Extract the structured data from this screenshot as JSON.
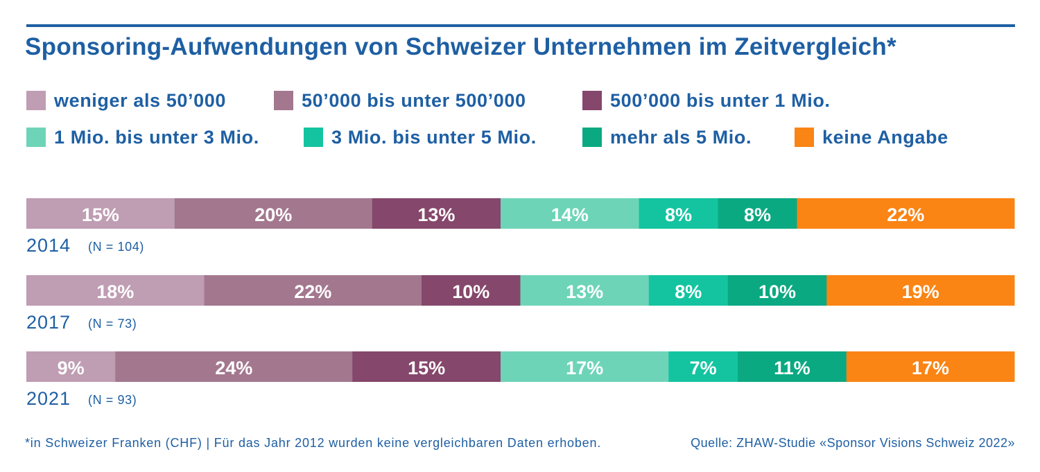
{
  "title": "Sponsoring-Aufwendungen von Schweizer Unternehmen im Zeitvergleich*",
  "footnote": "*in Schweizer Franken (CHF) | Für das Jahr 2012 wurden keine vergleichbaren Daten erhoben.",
  "source": "Quelle: ZHAW-Studie «Sponsor Visions Schweiz 2022»",
  "colors": {
    "text": "#1e5fa3",
    "bar_label": "#ffffff"
  },
  "chart_data": {
    "type": "bar",
    "orientation": "horizontal",
    "stacked": true,
    "unit": "%",
    "legend_placement": "top",
    "grid": false,
    "categories": [
      {
        "year": "2014",
        "n": "(N = 104)"
      },
      {
        "year": "2017",
        "n": "(N = 73)"
      },
      {
        "year": "2021",
        "n": "(N = 93)"
      }
    ],
    "series": [
      {
        "name": "weniger als 50’000",
        "color": "#bf9db3",
        "values": [
          15,
          18,
          9
        ]
      },
      {
        "name": "50’000 bis unter 500’000",
        "color": "#a3788f",
        "values": [
          20,
          22,
          24
        ]
      },
      {
        "name": "500’000 bis unter 1 Mio.",
        "color": "#85476b",
        "values": [
          13,
          10,
          15
        ]
      },
      {
        "name": "1 Mio. bis unter 3 Mio.",
        "color": "#6ed4b8",
        "values": [
          14,
          13,
          17
        ]
      },
      {
        "name": "3 Mio. bis unter 5 Mio.",
        "color": "#14c4a0",
        "values": [
          8,
          8,
          7
        ]
      },
      {
        "name": "mehr als 5 Mio.",
        "color": "#0ba982",
        "values": [
          8,
          10,
          11
        ]
      },
      {
        "name": "keine Angabe",
        "color": "#fa8414",
        "values": [
          22,
          19,
          17
        ]
      }
    ]
  }
}
